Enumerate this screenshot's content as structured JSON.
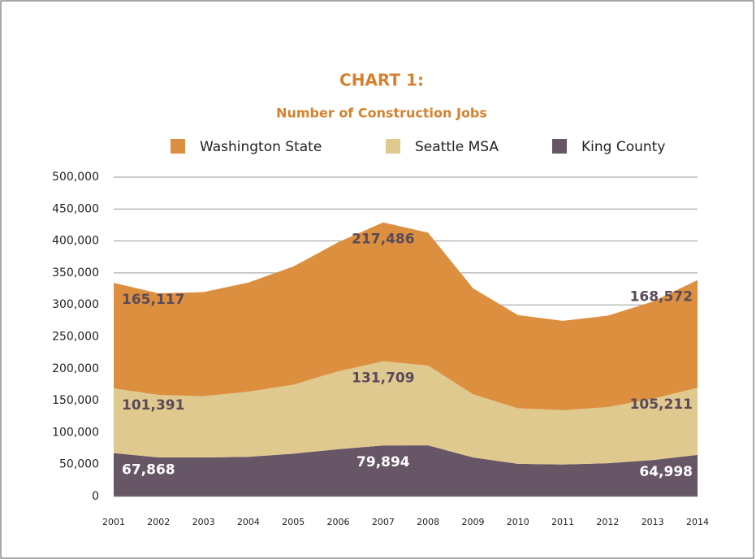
{
  "chart_data": {
    "type": "stacked-area",
    "title": "CHART 1:",
    "subtitle": "Number of Construction Jobs",
    "x": [
      "2001",
      "2002",
      "2003",
      "2004",
      "2005",
      "2006",
      "2007",
      "2008",
      "2009",
      "2010",
      "2011",
      "2012",
      "2013",
      "2014"
    ],
    "series": [
      {
        "name": "Washington State",
        "color": "#dc8f3e",
        "values": [
          165117,
          159000,
          163000,
          171000,
          185000,
          202000,
          217486,
          208000,
          166000,
          146000,
          140000,
          143000,
          152000,
          168572
        ],
        "value_labels": [
          "165,117",
          null,
          null,
          null,
          null,
          null,
          "217,486",
          null,
          null,
          null,
          null,
          null,
          null,
          "168,572"
        ]
      },
      {
        "name": "Seattle MSA",
        "color": "#e0c98f",
        "values": [
          101391,
          98000,
          96000,
          102000,
          108000,
          122000,
          131709,
          125000,
          99000,
          87000,
          85000,
          88000,
          96000,
          105211
        ],
        "value_labels": [
          "101,391",
          null,
          null,
          null,
          null,
          null,
          "131,709",
          null,
          null,
          null,
          null,
          null,
          null,
          "105,211"
        ]
      },
      {
        "name": "King County",
        "color": "#675665",
        "values": [
          67868,
          61000,
          61000,
          62000,
          67000,
          74000,
          79894,
          80000,
          61000,
          51000,
          50000,
          52000,
          57000,
          64998
        ],
        "value_labels": [
          "67,868",
          null,
          null,
          null,
          null,
          null,
          "79,894",
          null,
          null,
          null,
          null,
          null,
          null,
          "64,998"
        ]
      }
    ],
    "ylim": [
      0,
      500000
    ],
    "yticks": [
      0,
      {
        "value": 50000,
        "label": "50,000"
      },
      {
        "value": 100000,
        "label": "100,000"
      },
      {
        "value": 150000,
        "label": "150,000"
      },
      {
        "value": 200000,
        "label": "200,000"
      },
      {
        "value": 250000,
        "label": "250,000"
      },
      {
        "value": 300000,
        "label": "300,000"
      },
      {
        "value": 350000,
        "label": "350,000"
      },
      {
        "value": 400000,
        "label": "400,000"
      },
      {
        "value": 450000,
        "label": "450,000"
      },
      {
        "value": 500000,
        "label": "500,000"
      }
    ],
    "grid": true,
    "legend": "top"
  }
}
